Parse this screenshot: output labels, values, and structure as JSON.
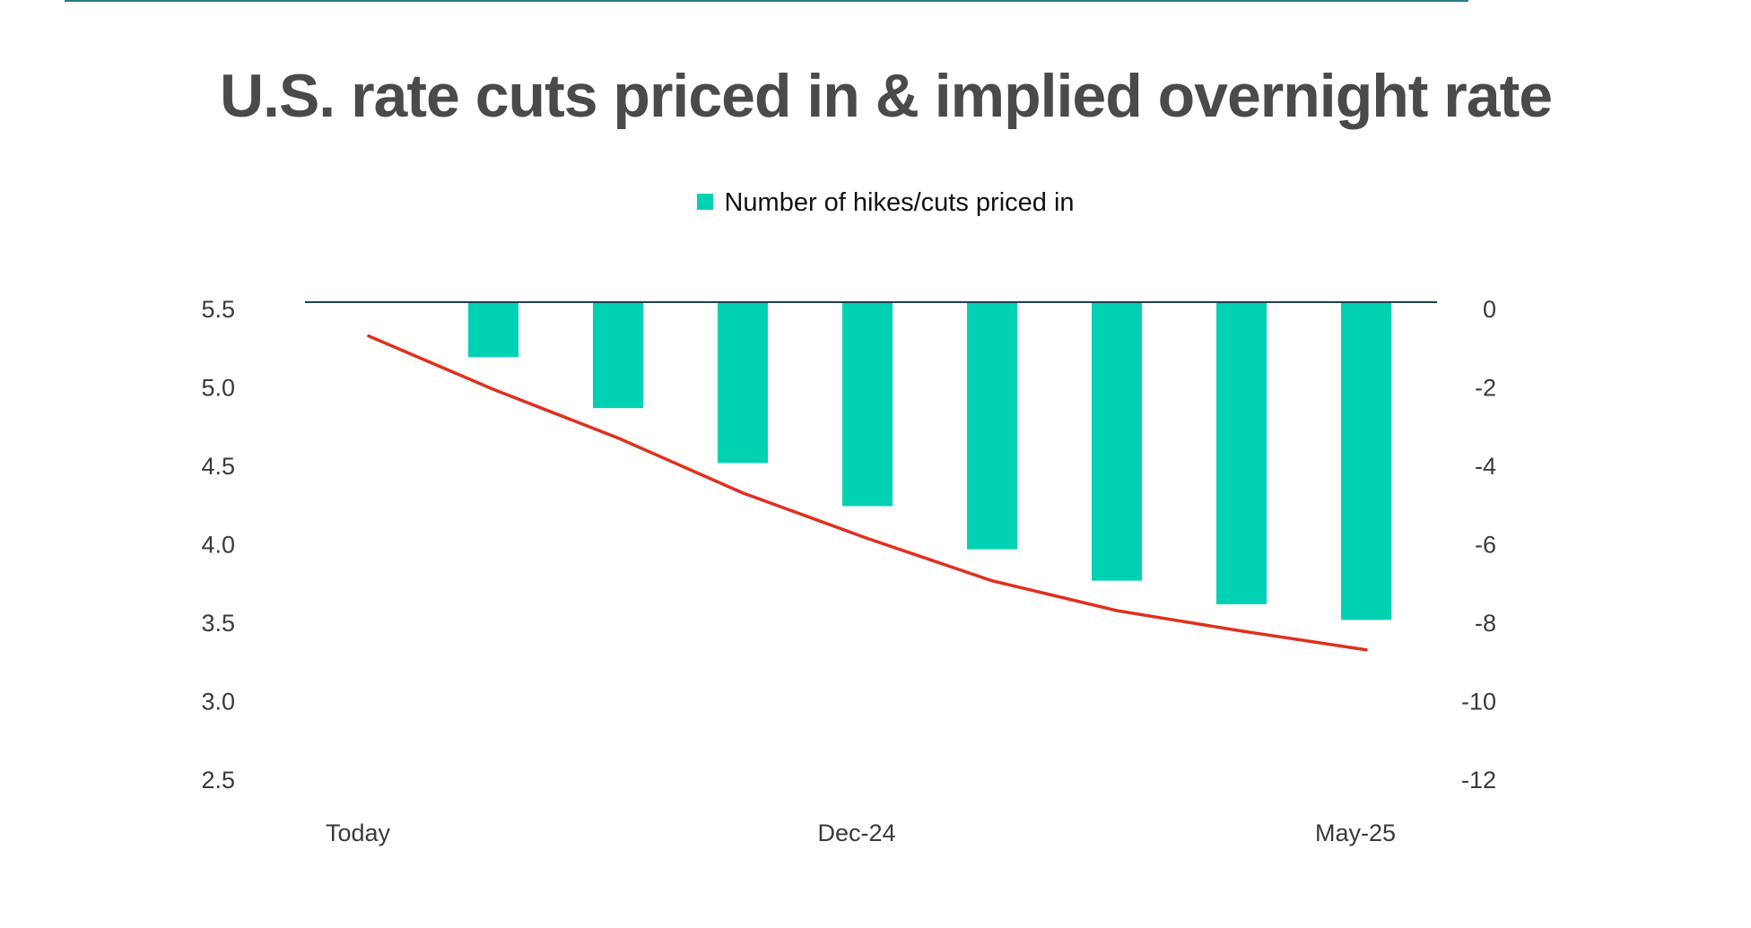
{
  "chart_data": {
    "type": "bar",
    "title": "U.S. rate cuts priced in & implied overnight rate",
    "legend": [
      {
        "label": "Number of hikes/cuts priced in",
        "color": "#00d1b2"
      }
    ],
    "x_tick_labels": [
      {
        "index": 0,
        "label": "Today"
      },
      {
        "index": 4,
        "label": "Dec-24"
      },
      {
        "index": 8,
        "label": "May-25"
      }
    ],
    "series": [
      {
        "name": "Number of hikes/cuts priced in",
        "type": "bar",
        "axis": "right",
        "color": "#00d1b2",
        "values": [
          0,
          -1.4,
          -2.7,
          -4.1,
          -5.2,
          -6.3,
          -7.1,
          -7.7,
          -8.1
        ]
      },
      {
        "name": "Implied overnight rate",
        "type": "line",
        "axis": "left",
        "color": "#e0301e",
        "values": [
          5.33,
          4.99,
          4.68,
          4.33,
          4.04,
          3.77,
          3.58,
          3.45,
          3.33
        ]
      }
    ],
    "left_axis": {
      "ylim": [
        2.5,
        5.5
      ],
      "ticks": [
        "5.5",
        "5.0",
        "4.5",
        "4.0",
        "3.5",
        "3.0",
        "2.5"
      ]
    },
    "right_axis": {
      "ylim": [
        -12,
        0
      ],
      "ticks": [
        "0",
        "-2",
        "-4",
        "-6",
        "-8",
        "-10",
        "-12"
      ]
    }
  }
}
